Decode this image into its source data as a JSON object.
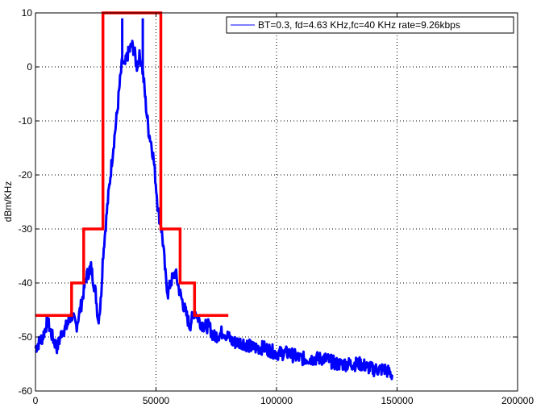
{
  "chart_data": {
    "type": "line",
    "title": "",
    "xlabel": "",
    "ylabel": "dBm/KHz",
    "xlim": [
      0,
      200000
    ],
    "ylim": [
      -60,
      10
    ],
    "x_ticks": [
      "0",
      "50000",
      "100000",
      "150000",
      "200000"
    ],
    "y_ticks": [
      "10",
      "0",
      "-10",
      "-20",
      "-30",
      "-40",
      "-50",
      "-60"
    ],
    "grid": true,
    "grid_style": "dotted",
    "legend_position": "top-right",
    "series": [
      {
        "name": "BT=0.3, fd=4.63 KHz,fc=40 KHz rate=9.26kbps",
        "color": "#0000ff",
        "style": "noisy-line",
        "points": [
          [
            0,
            -52
          ],
          [
            3000,
            -50
          ],
          [
            5000,
            -47
          ],
          [
            7000,
            -50
          ],
          [
            9000,
            -52
          ],
          [
            11000,
            -49
          ],
          [
            13000,
            -48
          ],
          [
            15000,
            -46
          ],
          [
            17000,
            -48
          ],
          [
            19000,
            -44
          ],
          [
            21000,
            -39
          ],
          [
            23000,
            -37
          ],
          [
            25000,
            -42
          ],
          [
            26000,
            -47
          ],
          [
            27000,
            -44
          ],
          [
            28000,
            -35
          ],
          [
            30000,
            -25
          ],
          [
            32000,
            -16
          ],
          [
            34000,
            -8
          ],
          [
            35000,
            -3
          ],
          [
            36000,
            1
          ],
          [
            37000,
            0
          ],
          [
            38000,
            2
          ],
          [
            39000,
            3
          ],
          [
            40000,
            4
          ],
          [
            41000,
            3
          ],
          [
            42000,
            0
          ],
          [
            43000,
            2
          ],
          [
            44000,
            1
          ],
          [
            45000,
            -3
          ],
          [
            46000,
            -8
          ],
          [
            47000,
            -12
          ],
          [
            48000,
            -14
          ],
          [
            49000,
            -17
          ],
          [
            50000,
            -22
          ],
          [
            51000,
            -27
          ],
          [
            52000,
            -29
          ],
          [
            53000,
            -33
          ],
          [
            54000,
            -39
          ],
          [
            55000,
            -42
          ],
          [
            56000,
            -40
          ],
          [
            58000,
            -38
          ],
          [
            60000,
            -42
          ],
          [
            62000,
            -45
          ],
          [
            64000,
            -48
          ],
          [
            66000,
            -45
          ],
          [
            68000,
            -47
          ],
          [
            70000,
            -48
          ],
          [
            72000,
            -48
          ],
          [
            74000,
            -50
          ],
          [
            78000,
            -49
          ],
          [
            82000,
            -51
          ],
          [
            86000,
            -51
          ],
          [
            90000,
            -52
          ],
          [
            95000,
            -52
          ],
          [
            100000,
            -53
          ],
          [
            105000,
            -53
          ],
          [
            110000,
            -54
          ],
          [
            115000,
            -54
          ],
          [
            120000,
            -54
          ],
          [
            125000,
            -55
          ],
          [
            130000,
            -55
          ],
          [
            135000,
            -55
          ],
          [
            140000,
            -56
          ],
          [
            145000,
            -56
          ],
          [
            148000,
            -57
          ]
        ]
      },
      {
        "name": "",
        "color": "#ff0000",
        "style": "step",
        "points": [
          [
            0,
            -46
          ],
          [
            15000,
            -46
          ],
          [
            15000,
            -40
          ],
          [
            20000,
            -40
          ],
          [
            20000,
            -30
          ],
          [
            28000,
            -30
          ],
          [
            28000,
            10
          ],
          [
            52000,
            10
          ],
          [
            52000,
            -30
          ],
          [
            60000,
            -30
          ],
          [
            60000,
            -40
          ],
          [
            66000,
            -40
          ],
          [
            66000,
            -46
          ],
          [
            80000,
            -46
          ]
        ]
      }
    ]
  }
}
